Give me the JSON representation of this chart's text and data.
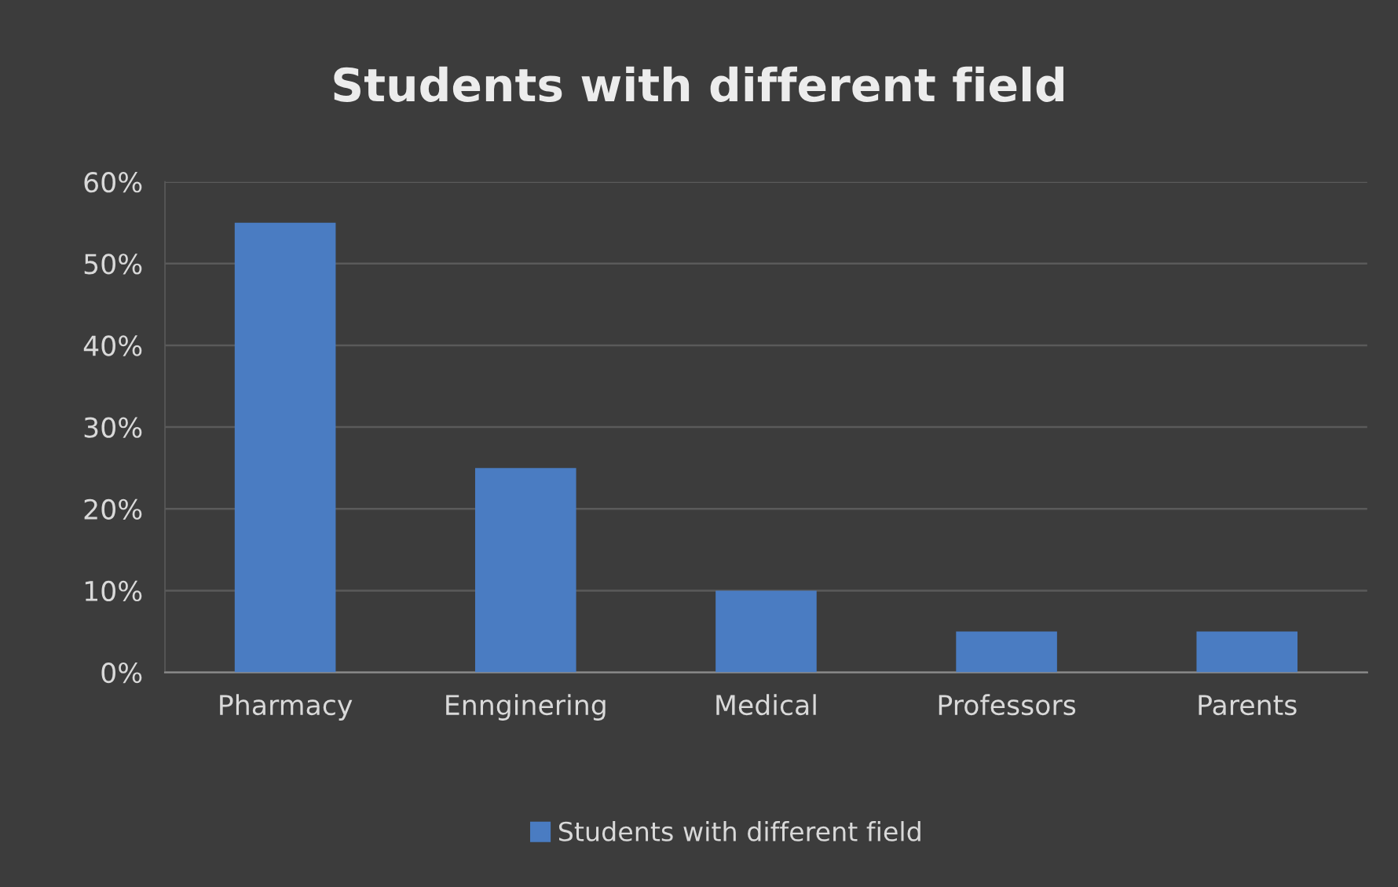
{
  "chart_data": {
    "type": "bar",
    "title": "Students with different field",
    "categories": [
      "Pharmacy",
      "Ennginering",
      "Medical",
      "Professors",
      "Parents"
    ],
    "series": [
      {
        "name": "Students with different field",
        "color": "#4a7cc2",
        "values": [
          55,
          25,
          10,
          5,
          5
        ]
      }
    ],
    "ylim": [
      0,
      60
    ],
    "yticks": [
      {
        "value": 0,
        "label": "0%"
      },
      {
        "value": 10,
        "label": "10%"
      },
      {
        "value": 20,
        "label": "20%"
      },
      {
        "value": 30,
        "label": "30%"
      },
      {
        "value": 40,
        "label": "40%"
      },
      {
        "value": 50,
        "label": "50%"
      },
      {
        "value": 60,
        "label": "60%"
      }
    ],
    "grid": "y",
    "legend": "bottom"
  }
}
